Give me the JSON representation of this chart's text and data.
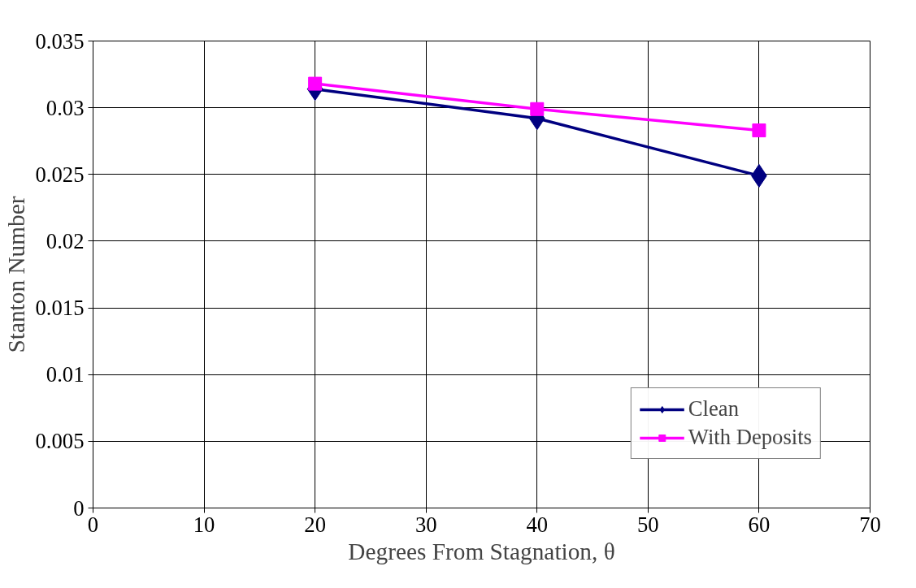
{
  "chart_data": {
    "type": "line",
    "xlabel": "Degrees From Stagnation, θ",
    "ylabel": "Stanton Number",
    "x": [
      20,
      40,
      60
    ],
    "series": [
      {
        "name": "Clean",
        "color": "#000080",
        "values": [
          0.0314,
          0.0292,
          0.0249
        ],
        "marker": "diamond"
      },
      {
        "name": "With Deposits",
        "color": "#ff00ff",
        "values": [
          0.0318,
          0.0299,
          0.0283
        ],
        "marker": "square"
      }
    ],
    "xlim": [
      0,
      70
    ],
    "xticks": [
      0,
      10,
      20,
      30,
      40,
      50,
      60,
      70
    ],
    "ylim": [
      0,
      0.035
    ],
    "yticks": [
      0,
      0.005,
      0.01,
      0.015,
      0.02,
      0.025,
      0.03,
      0.035
    ],
    "grid": true,
    "legend": "bottom right",
    "line_style": "solid"
  }
}
